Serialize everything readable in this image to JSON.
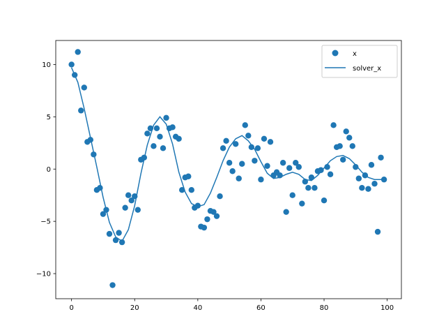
{
  "chart_data": {
    "type": "scatter",
    "title": "",
    "xlabel": "",
    "ylabel": "",
    "xlim": [
      -5,
      104.5
    ],
    "ylim": [
      -12.4,
      12.3
    ],
    "xticks": [
      0,
      20,
      40,
      60,
      80,
      100
    ],
    "yticks": [
      -10,
      -5,
      0,
      5,
      10
    ],
    "grid": false,
    "legend_position": "upper right",
    "series": [
      {
        "name": "x",
        "kind": "scatter",
        "color": "#1f77b4",
        "x": [
          0,
          1,
          2,
          3,
          4,
          5,
          6,
          7,
          8,
          9,
          10,
          11,
          12,
          13,
          14,
          15,
          16,
          17,
          18,
          19,
          20,
          21,
          22,
          23,
          24,
          25,
          26,
          27,
          28,
          29,
          30,
          31,
          32,
          33,
          34,
          35,
          36,
          37,
          38,
          39,
          40,
          41,
          42,
          43,
          44,
          45,
          46,
          47,
          48,
          49,
          50,
          51,
          52,
          53,
          54,
          55,
          56,
          57,
          58,
          59,
          60,
          61,
          62,
          63,
          64,
          65,
          66,
          67,
          68,
          69,
          70,
          71,
          72,
          73,
          74,
          75,
          76,
          77,
          78,
          79,
          80,
          81,
          82,
          83,
          84,
          85,
          86,
          87,
          88,
          89,
          90,
          91,
          92,
          93,
          94,
          95,
          96,
          97,
          98,
          99
        ],
        "y": [
          10.0,
          9.0,
          11.2,
          5.6,
          7.8,
          2.6,
          2.8,
          1.4,
          -2.0,
          -1.8,
          -4.3,
          -3.9,
          -6.2,
          -11.1,
          -6.8,
          -6.1,
          -7.0,
          -3.7,
          -2.5,
          -3.0,
          -2.6,
          -3.9,
          0.9,
          1.1,
          3.4,
          3.9,
          2.2,
          3.9,
          3.1,
          2.0,
          4.9,
          3.9,
          4.0,
          3.1,
          2.9,
          -2.0,
          -0.8,
          -0.7,
          -2.0,
          -3.7,
          -3.5,
          -5.5,
          -5.6,
          -4.8,
          -4.0,
          -4.1,
          -4.5,
          -2.6,
          2.0,
          2.7,
          0.6,
          -0.2,
          2.4,
          -0.9,
          0.5,
          4.2,
          3.2,
          2.1,
          0.8,
          2.0,
          -1.0,
          2.9,
          0.3,
          2.6,
          -0.6,
          -0.3,
          -0.6,
          0.6,
          -4.1,
          0.1,
          -2.5,
          0.6,
          0.2,
          -3.3,
          -1.2,
          -1.8,
          -0.8,
          -1.8,
          -0.2,
          -0.1,
          -3.0,
          0.2,
          -0.5,
          4.2,
          2.1,
          2.2,
          0.9,
          3.6,
          3.0,
          2.2,
          0.2,
          -0.9,
          -1.8,
          -0.6,
          -1.9,
          0.4,
          -1.4,
          -6.0,
          1.1,
          -1.0
        ]
      },
      {
        "name": "solver_x",
        "kind": "line",
        "color": "#1f77b4",
        "x": [
          0,
          2,
          4,
          6,
          8,
          10,
          12,
          14,
          16,
          18,
          20,
          22,
          24,
          26,
          28,
          30,
          32,
          34,
          36,
          38,
          40,
          42,
          44,
          46,
          48,
          50,
          52,
          54,
          56,
          58,
          60,
          62,
          64,
          66,
          68,
          70,
          72,
          74,
          76,
          78,
          80,
          82,
          84,
          86,
          88,
          90,
          92,
          94,
          96,
          98,
          99
        ],
        "y": [
          9.7,
          8.3,
          5.8,
          3.0,
          0.2,
          -2.7,
          -5.1,
          -6.5,
          -6.9,
          -5.8,
          -3.5,
          -0.4,
          2.3,
          4.2,
          5.0,
          4.3,
          2.4,
          -0.3,
          -2.2,
          -3.3,
          -3.6,
          -3.4,
          -2.3,
          -0.8,
          0.8,
          2.1,
          2.9,
          3.2,
          2.7,
          1.9,
          0.7,
          -0.4,
          -0.9,
          -0.8,
          -0.5,
          -0.3,
          -0.5,
          -1.0,
          -1.1,
          -0.6,
          0.1,
          0.8,
          1.2,
          1.3,
          1.0,
          0.4,
          -0.3,
          -0.8,
          -1.0,
          -1.0,
          -0.9
        ]
      }
    ]
  }
}
